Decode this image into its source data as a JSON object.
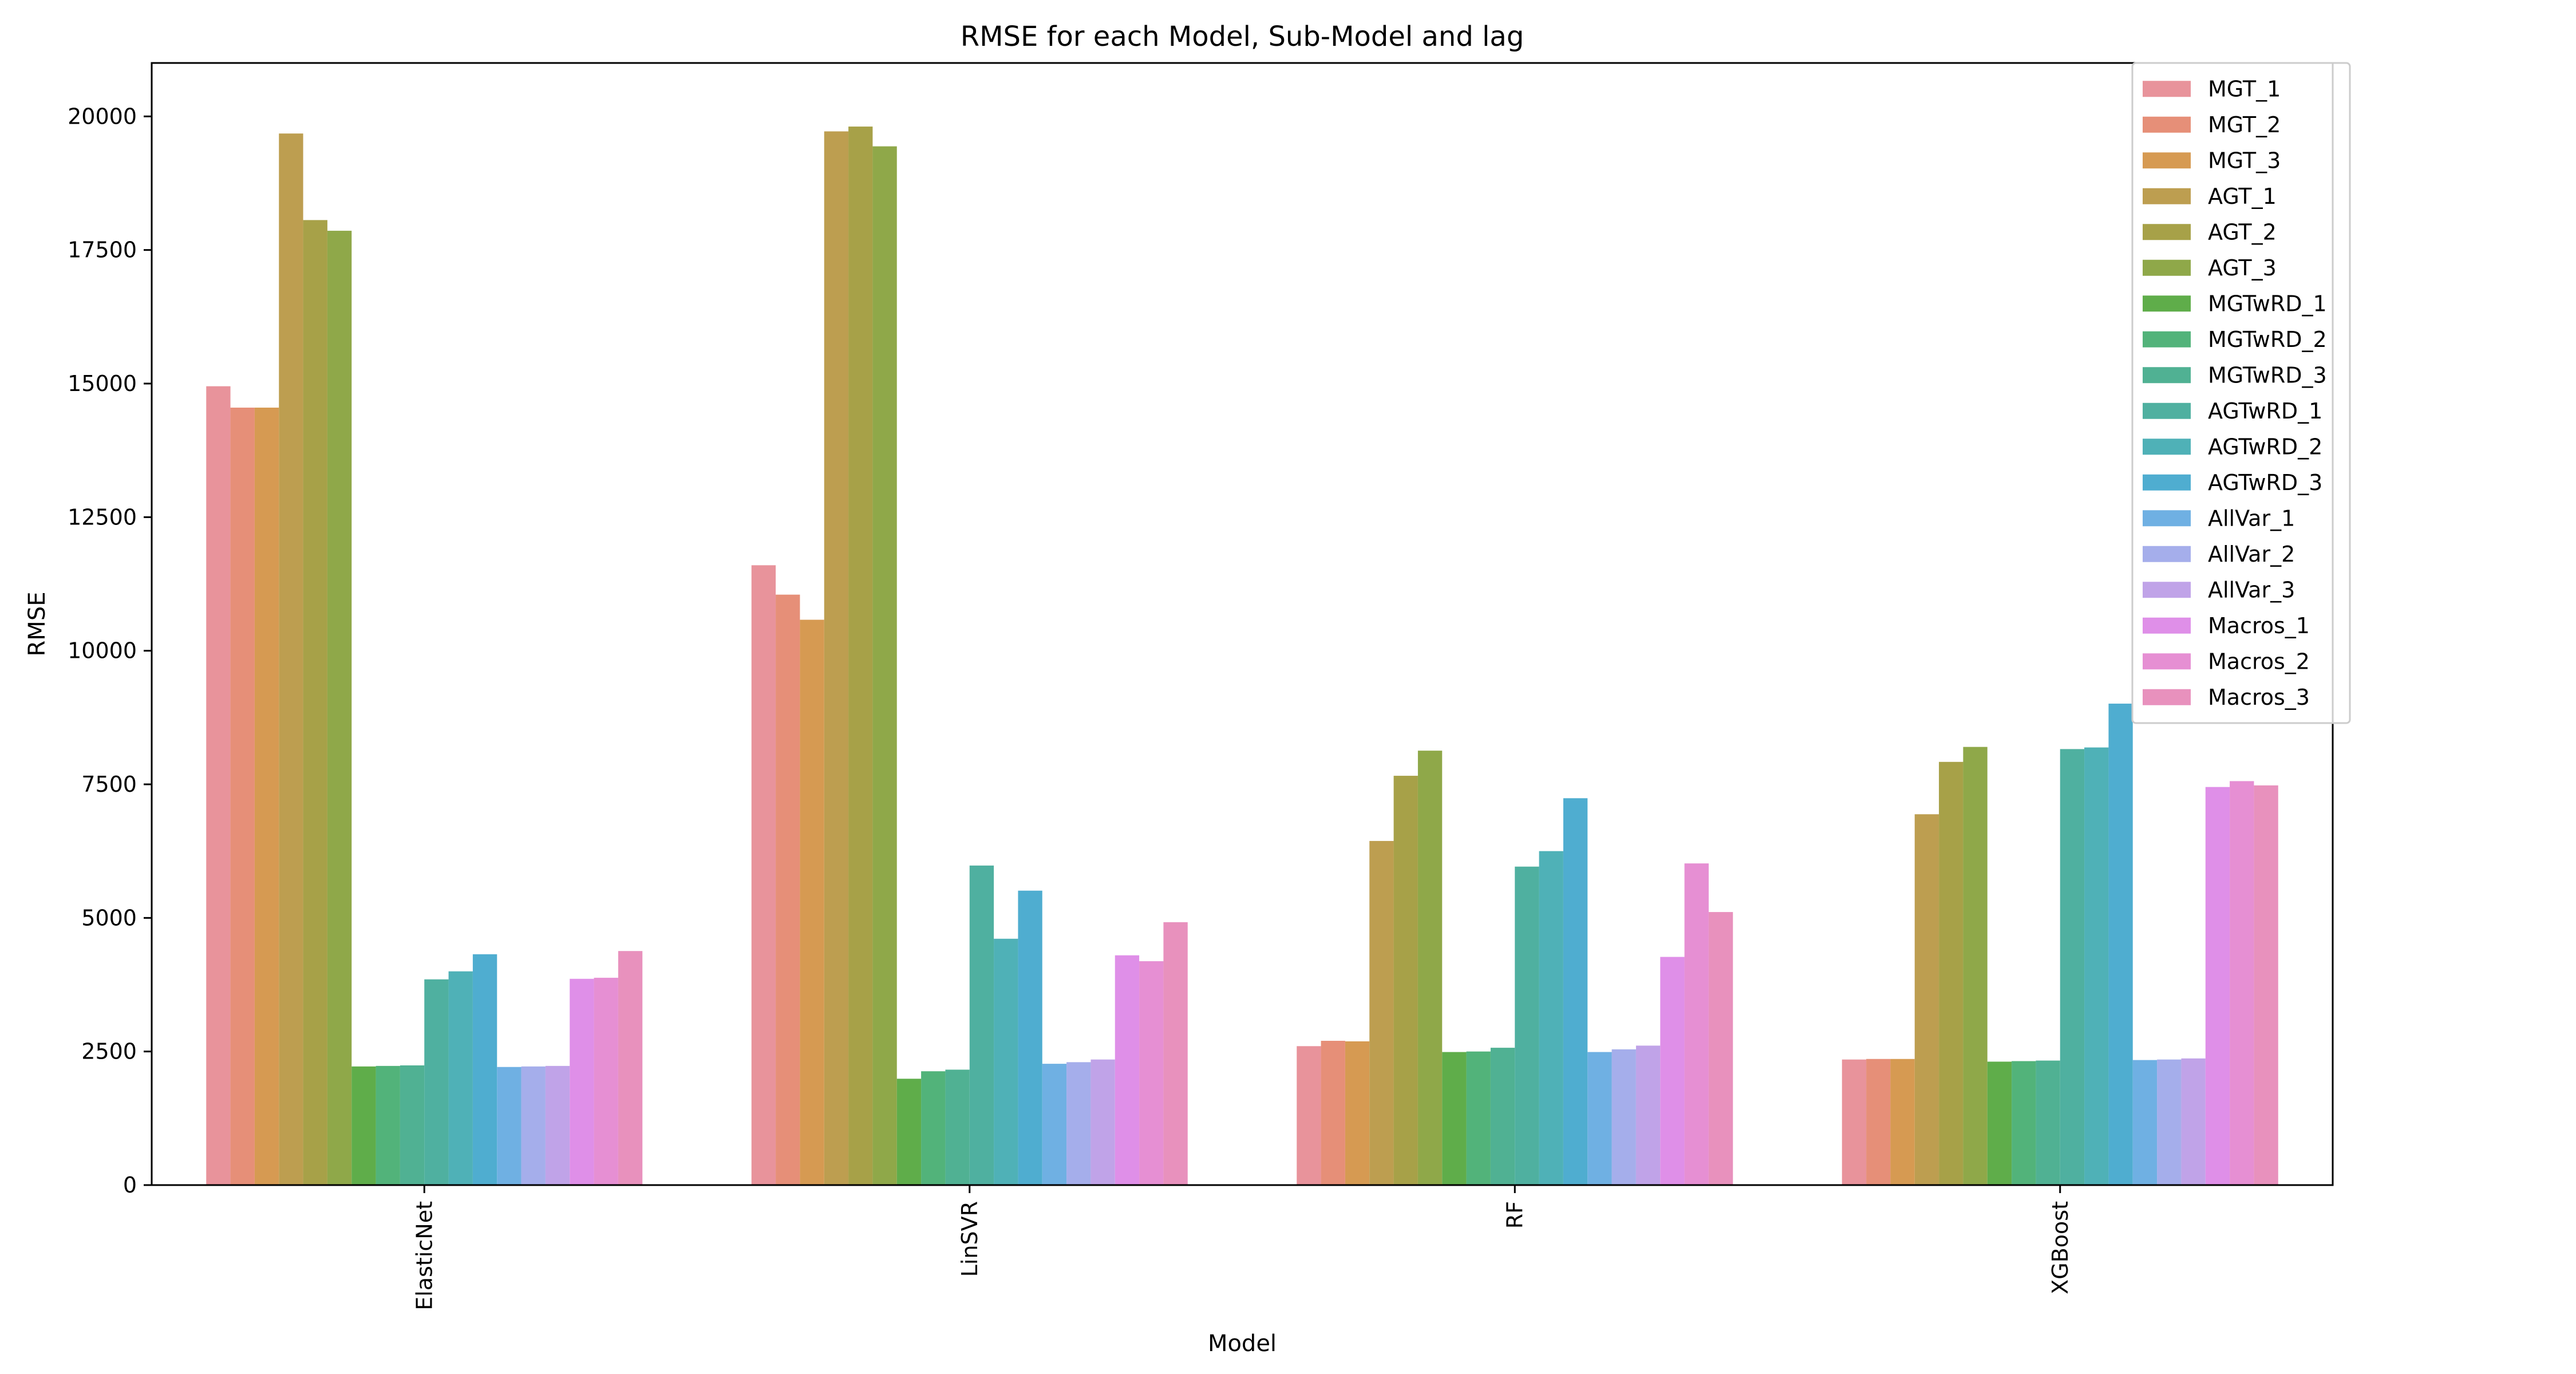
{
  "chart_data": {
    "type": "bar",
    "title": "RMSE for each Model, Sub-Model and lag",
    "xlabel": "Model",
    "ylabel": "RMSE",
    "ylim": [
      0,
      21000
    ],
    "yticks": [
      "0",
      "2500",
      "5000",
      "7500",
      "10000",
      "12500",
      "15000",
      "17500",
      "20000"
    ],
    "categories": [
      "ElasticNet",
      "LinSVR",
      "RF",
      "XGBoost"
    ],
    "legend_position": "top-right",
    "grid": false,
    "series": [
      {
        "name": "MGT_1",
        "color": "#e8939b",
        "values": [
          14950,
          11600,
          2600,
          2350
        ]
      },
      {
        "name": "MGT_2",
        "color": "#e68f78",
        "values": [
          14550,
          11050,
          2700,
          2360
        ]
      },
      {
        "name": "MGT_3",
        "color": "#d69a52",
        "values": [
          14550,
          10580,
          2690,
          2360
        ]
      },
      {
        "name": "AGT_1",
        "color": "#bd9e50",
        "values": [
          19680,
          19720,
          6440,
          6940
        ]
      },
      {
        "name": "AGT_2",
        "color": "#a7a148",
        "values": [
          18060,
          19810,
          7660,
          7920
        ]
      },
      {
        "name": "AGT_3",
        "color": "#8fa849",
        "values": [
          17860,
          19440,
          8130,
          8200
        ]
      },
      {
        "name": "MGTwRD_1",
        "color": "#5fad4a",
        "values": [
          2220,
          1990,
          2490,
          2310
        ]
      },
      {
        "name": "MGTwRD_2",
        "color": "#52b37a",
        "values": [
          2230,
          2130,
          2500,
          2320
        ]
      },
      {
        "name": "MGTwRD_3",
        "color": "#50b193",
        "values": [
          2240,
          2160,
          2570,
          2330
        ]
      },
      {
        "name": "AGTwRD_1",
        "color": "#4fb0a0",
        "values": [
          3850,
          5980,
          5960,
          8160
        ]
      },
      {
        "name": "AGTwRD_2",
        "color": "#4fb1b7",
        "values": [
          4000,
          4610,
          6250,
          8190
        ]
      },
      {
        "name": "AGTwRD_3",
        "color": "#4fadd0",
        "values": [
          4320,
          5510,
          7240,
          9010
        ]
      },
      {
        "name": "AllVar_1",
        "color": "#6fb0e3",
        "values": [
          2210,
          2270,
          2490,
          2340
        ]
      },
      {
        "name": "AllVar_2",
        "color": "#a5aeeb",
        "values": [
          2220,
          2300,
          2540,
          2350
        ]
      },
      {
        "name": "AllVar_3",
        "color": "#c0a3e8",
        "values": [
          2230,
          2350,
          2610,
          2370
        ]
      },
      {
        "name": "Macros_1",
        "color": "#df8fe8",
        "values": [
          3860,
          4300,
          4270,
          7450
        ]
      },
      {
        "name": "Macros_2",
        "color": "#e68fd3",
        "values": [
          3880,
          4190,
          6020,
          7560
        ]
      },
      {
        "name": "Macros_3",
        "color": "#e891bd",
        "values": [
          4380,
          4920,
          5110,
          7480
        ]
      }
    ]
  }
}
